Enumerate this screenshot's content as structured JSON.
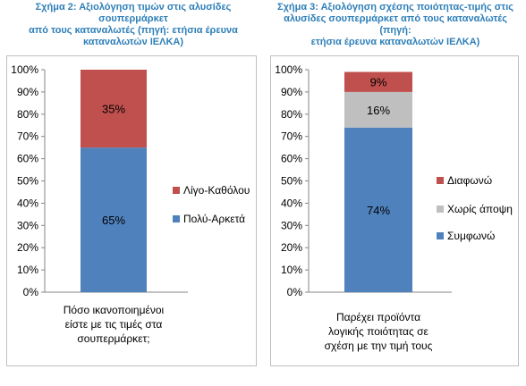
{
  "figures": [
    {
      "title_lines": [
        "Σχήμα 2: Αξιολόγηση τιμών στις αλυσίδες σουπερμάρκετ",
        "από τους καταναλωτές (πηγή: ετήσια έρευνα",
        "καταναλωτών ΙΕΛΚΑ)"
      ]
    },
    {
      "title_lines": [
        "Σχήμα 3: Αξιολόγηση σχέσης ποιότητας-τιμής στις",
        "αλυσίδες σουπερμάρκετ από τους καταναλωτές (πηγή:",
        "ετήσια έρευνα καταναλωτών ΙΕΛΚΑ)"
      ]
    }
  ],
  "chart_data": [
    {
      "type": "bar",
      "stacked": true,
      "percent": true,
      "categories": [
        "Πόσο ικανοποιημένοι είστε με τις τιμές στα σουπερμάρκετ;"
      ],
      "category_lines": [
        "Πόσο ικανοποιημένοι",
        "είστε με τις τιμές στα",
        "σουπερμάρκετ;"
      ],
      "series": [
        {
          "name": "Πολύ-Αρκετά",
          "values": [
            65
          ],
          "label": "65%",
          "color": "#4f81bd"
        },
        {
          "name": "Λίγο-Καθόλου",
          "values": [
            35
          ],
          "label": "35%",
          "color": "#c0504d"
        }
      ],
      "legend_order": [
        "Λίγο-Καθόλου",
        "Πολύ-Αρκετά"
      ],
      "ylim": [
        0,
        100
      ],
      "yticks": [
        "0%",
        "10%",
        "20%",
        "30%",
        "40%",
        "50%",
        "60%",
        "70%",
        "80%",
        "90%",
        "100%"
      ],
      "legend": "right",
      "grid": false
    },
    {
      "type": "bar",
      "stacked": true,
      "percent": true,
      "categories": [
        "Παρέχει προϊόντα λογικής ποιότητας σε σχέση με την τιμή τους"
      ],
      "category_lines": [
        "Παρέχει προϊόντα",
        "λογικής ποιότητας σε",
        "σχέση με την τιμή τους"
      ],
      "series": [
        {
          "name": "Συμφωνώ",
          "values": [
            74
          ],
          "label": "74%",
          "color": "#4f81bd"
        },
        {
          "name": "Χωρίς άποψη",
          "values": [
            16
          ],
          "label": "16%",
          "color": "#bfbfbf"
        },
        {
          "name": "Διαφωνώ",
          "values": [
            9
          ],
          "label": "9%",
          "color": "#c0504d"
        }
      ],
      "legend_order": [
        "Διαφωνώ",
        "Χωρίς άποψη",
        "Συμφωνώ"
      ],
      "ylim": [
        0,
        100
      ],
      "yticks": [
        "0%",
        "10%",
        "20%",
        "30%",
        "40%",
        "50%",
        "60%",
        "70%",
        "80%",
        "90%",
        "100%"
      ],
      "legend": "right",
      "grid": false
    }
  ]
}
